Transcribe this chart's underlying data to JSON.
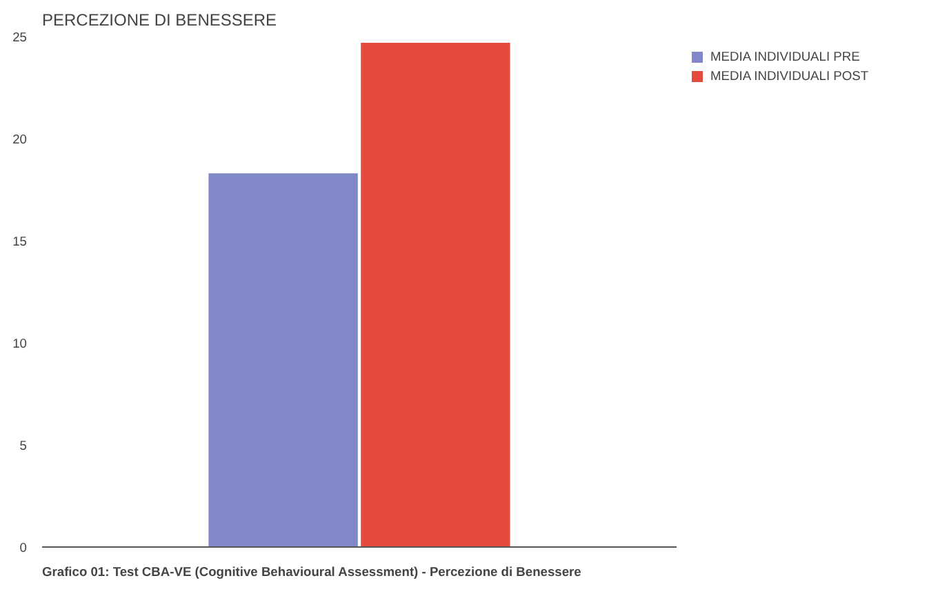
{
  "chart_data": {
    "type": "bar",
    "title": "PERCEZIONE DI BENESSERE",
    "annotations": [
      "Grafico 01: Test CBA-VE (Cognitive Behavioural Assessment) - Percezione di Benessere"
    ],
    "categories": [
      null
    ],
    "series": [
      {
        "name": "MEDIA INDIVIDUALI PRE",
        "color": "#8088c8",
        "values": [
          18.3
        ]
      },
      {
        "name": "MEDIA INDIVIDUALI POST",
        "color": "#e44a3e",
        "values": [
          24.7
        ]
      }
    ],
    "ylim": [
      0,
      25
    ],
    "yticks": [
      0,
      5,
      10,
      15,
      20,
      25
    ],
    "grid": false,
    "legend": "top right",
    "tick_labels": "y"
  }
}
